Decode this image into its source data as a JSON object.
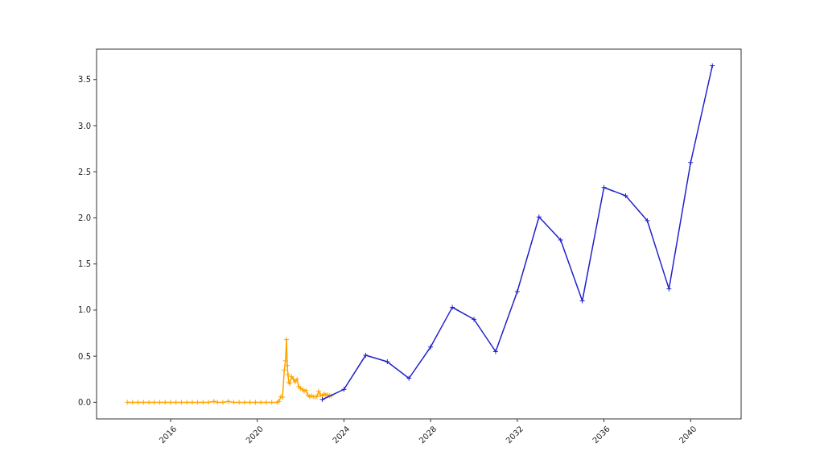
{
  "chart_data": {
    "type": "line",
    "xlim": [
      "2012-08",
      "2042-05"
    ],
    "ylim": [
      -0.18,
      3.83
    ],
    "xticks": [
      {
        "value": "2016-01-01",
        "label": "2016"
      },
      {
        "value": "2020-01-01",
        "label": "2020"
      },
      {
        "value": "2024-01-01",
        "label": "2024"
      },
      {
        "value": "2028-01-01",
        "label": "2028"
      },
      {
        "value": "2032-01-01",
        "label": "2032"
      },
      {
        "value": "2036-01-01",
        "label": "2036"
      },
      {
        "value": "2040-01-01",
        "label": "2040"
      }
    ],
    "yticks": [
      {
        "value": 0,
        "label": "0.0"
      },
      {
        "value": 0.5,
        "label": "0.5"
      },
      {
        "value": 1,
        "label": "1.0"
      },
      {
        "value": 1.5,
        "label": "1.5"
      },
      {
        "value": 2,
        "label": "2.0"
      },
      {
        "value": 2.5,
        "label": "2.5"
      },
      {
        "value": 3,
        "label": "3.0"
      },
      {
        "value": 3.5,
        "label": "3.5"
      }
    ],
    "grid": false,
    "marker": "cross",
    "line_style": "solid",
    "series": [
      {
        "color": "#ffa500",
        "x": [
          "2014-01",
          "2014-04",
          "2014-07",
          "2014-10",
          "2015-01",
          "2015-04",
          "2015-07",
          "2015-10",
          "2016-01",
          "2016-04",
          "2016-07",
          "2016-10",
          "2017-01",
          "2017-04",
          "2017-07",
          "2017-10",
          "2018-01",
          "2018-03",
          "2018-06",
          "2018-09",
          "2018-12",
          "2019-03",
          "2019-06",
          "2019-09",
          "2019-12",
          "2020-03",
          "2020-06",
          "2020-09",
          "2020-12",
          "2021-01",
          "2021-02",
          "2021-03",
          "2021-04",
          "2021-04-20",
          "2021-05-08",
          "2021-05-20",
          "2021-06",
          "2021-06-15",
          "2021-07",
          "2021-08",
          "2021-09",
          "2021-10",
          "2021-11",
          "2021-12",
          "2022-01",
          "2022-02",
          "2022-03",
          "2022-04",
          "2022-05",
          "2022-06",
          "2022-07",
          "2022-08",
          "2022-09",
          "2022-10",
          "2022-11",
          "2022-12",
          "2023-01",
          "2023-02",
          "2023-03",
          "2023-04",
          "2023-05",
          "2023-06"
        ],
        "values": [
          0,
          0,
          0,
          0,
          0,
          0,
          0,
          0,
          0,
          0,
          0,
          0,
          0,
          0,
          0,
          0,
          0.01,
          0,
          0,
          0.01,
          0,
          0,
          0,
          0,
          0,
          0,
          0,
          0,
          0,
          0.01,
          0.06,
          0.055,
          0.35,
          0.45,
          0.68,
          0.4,
          0.3,
          0.22,
          0.2,
          0.28,
          0.25,
          0.22,
          0.25,
          0.17,
          0.15,
          0.14,
          0.12,
          0.13,
          0.08,
          0.06,
          0.07,
          0.06,
          0.06,
          0.06,
          0.12,
          0.08,
          0.07,
          0.09,
          0.08,
          0.08,
          0.07,
          0.07
        ]
      },
      {
        "color": "#2222cc",
        "x": [
          "2023-01",
          "2024-01",
          "2025-01",
          "2026-01",
          "2027-01",
          "2028-01",
          "2029-01",
          "2030-01",
          "2031-01",
          "2032-01",
          "2033-01",
          "2034-01",
          "2035-01",
          "2036-01",
          "2037-01",
          "2038-01",
          "2039-01",
          "2040-01",
          "2041-01"
        ],
        "values": [
          0.03,
          0.14,
          0.51,
          0.44,
          0.26,
          0.6,
          1.03,
          0.9,
          0.55,
          1.2,
          2.01,
          1.76,
          1.1,
          2.33,
          2.24,
          1.97,
          1.23,
          2.6,
          3.65
        ]
      }
    ]
  }
}
